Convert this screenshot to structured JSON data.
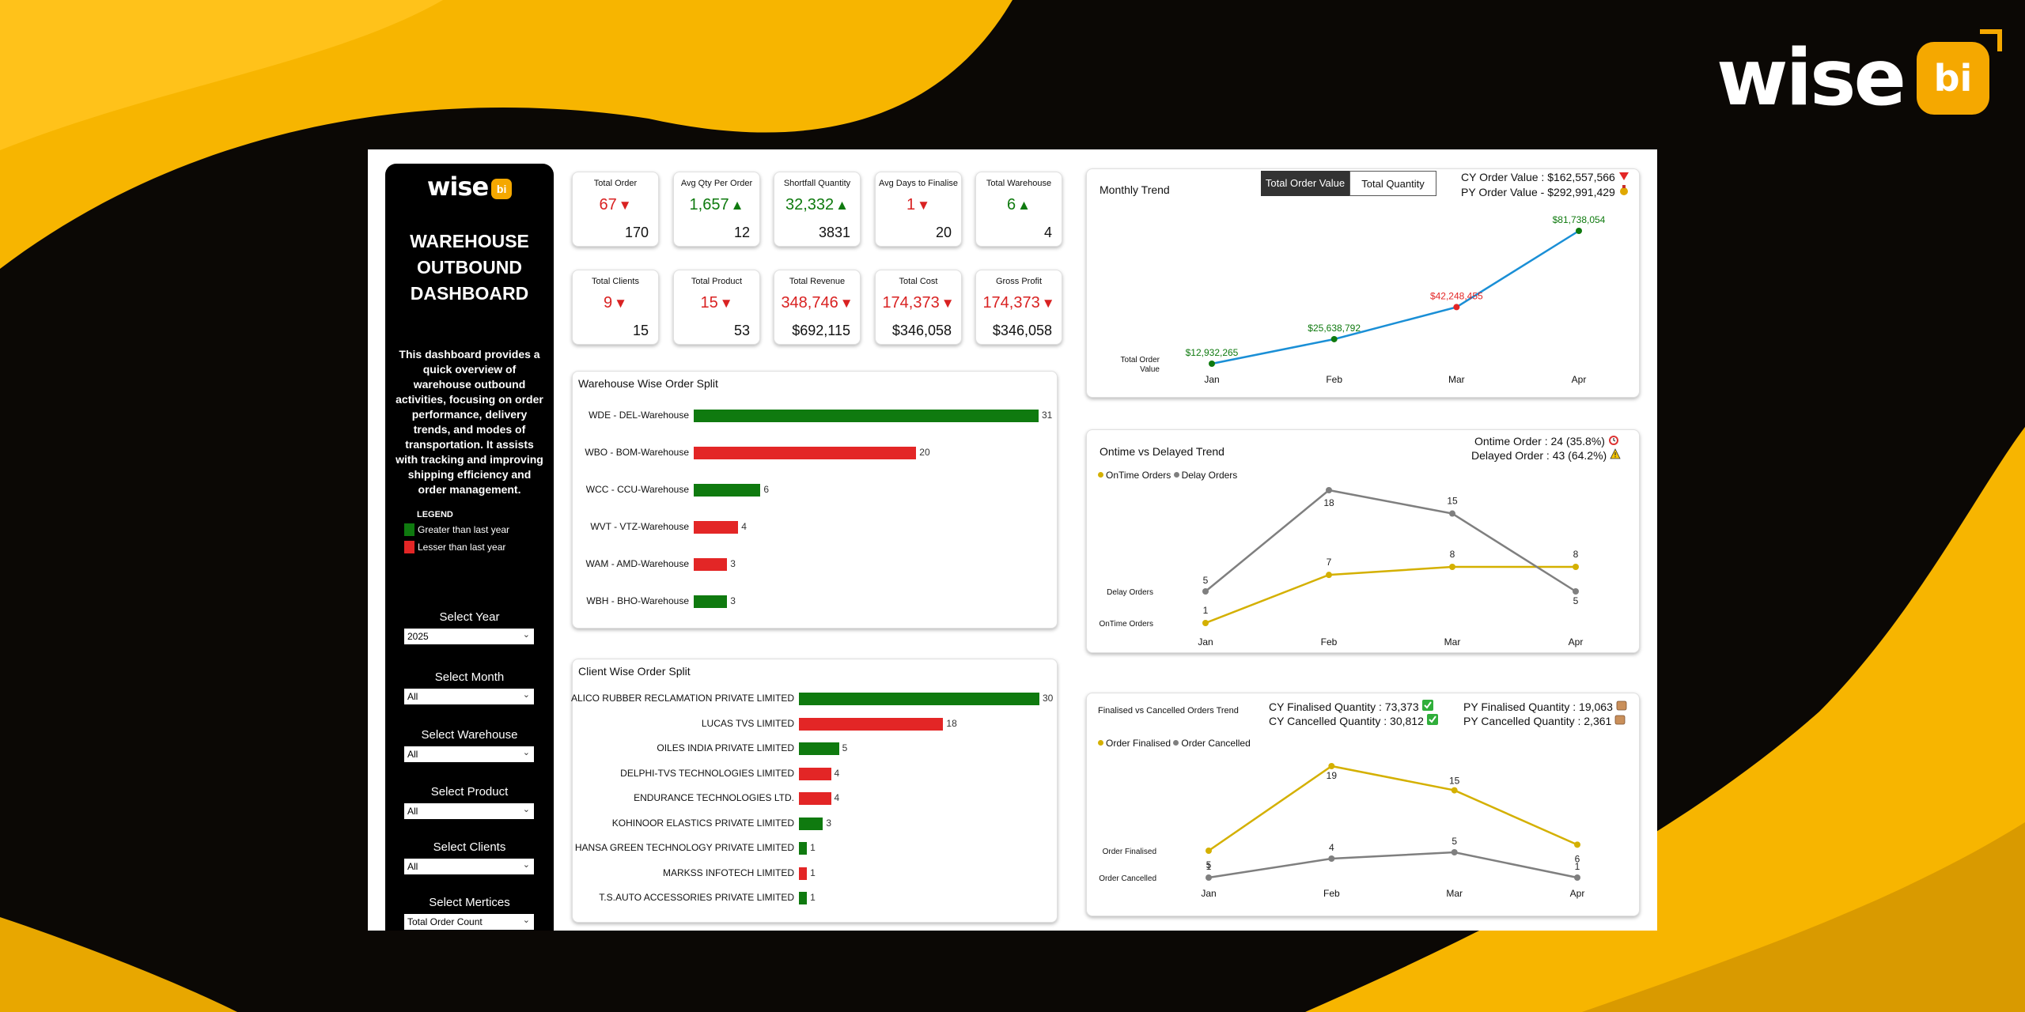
{
  "brand": {
    "word": "wise",
    "badge": "bi"
  },
  "colors": {
    "green": "#0f7a0f",
    "red": "#e32626",
    "blue": "#1a8fd6",
    "gold": "#d4b000",
    "gray": "#7f7f7f",
    "accent": "#f5a800"
  },
  "sidebar": {
    "logo_word": "wise",
    "logo_badge": "bi",
    "title": "WAREHOUSE OUTBOUND DASHBOARD",
    "description": "This dashboard provides a quick overview of warehouse outbound activities, focusing on order performance, delivery trends, and modes of transportation. It assists with tracking and improving shipping efficiency and order management.",
    "legend": {
      "heading": "LEGEND",
      "greater": "Greater than last year",
      "lesser": "Lesser than last year"
    },
    "filters": [
      {
        "label": "Select Year",
        "value": "2025"
      },
      {
        "label": "Select Month",
        "value": "All"
      },
      {
        "label": "Select Warehouse",
        "value": "All"
      },
      {
        "label": "Select Product",
        "value": "All"
      },
      {
        "label": "Select Clients",
        "value": "All"
      },
      {
        "label": "Select Mertices",
        "value": "Total Order Count"
      }
    ]
  },
  "kpis": [
    {
      "title": "Total Order",
      "value": "67",
      "trend": "down",
      "py": "170"
    },
    {
      "title": "Avg Qty Per Order",
      "value": "1,657",
      "trend": "up",
      "py": "12"
    },
    {
      "title": "Shortfall Quantity",
      "value": "32,332",
      "trend": "up",
      "py": "3831"
    },
    {
      "title": "Avg Days to Finalise",
      "value": "1",
      "trend": "down",
      "py": "20"
    },
    {
      "title": "Total Warehouse",
      "value": "6",
      "trend": "up",
      "py": "4"
    },
    {
      "title": "Total Clients",
      "value": "9",
      "trend": "down",
      "py": "15"
    },
    {
      "title": "Total Product",
      "value": "15",
      "trend": "down",
      "py": "53"
    },
    {
      "title": "Total Revenue",
      "value": "348,746",
      "trend": "down",
      "py": "$692,115"
    },
    {
      "title": "Total Cost",
      "value": "174,373",
      "trend": "down",
      "py": "$346,058"
    },
    {
      "title": "Gross Profit",
      "value": "174,373",
      "trend": "down",
      "py": "$346,058"
    }
  ],
  "warehouse_split": {
    "title": "Warehouse Wise Order Split",
    "chart_data": {
      "type": "bar",
      "orientation": "horizontal",
      "categories": [
        "WDE - DEL-Warehouse",
        "WBO - BOM-Warehouse",
        "WCC - CCU-Warehouse",
        "WVT - VTZ-Warehouse",
        "WAM - AMD-Warehouse",
        "WBH - BHO-Warehouse"
      ],
      "values": [
        31,
        20,
        6,
        4,
        3,
        3
      ],
      "colors": [
        "green",
        "red",
        "green",
        "red",
        "red",
        "green"
      ]
    }
  },
  "client_split": {
    "title": "Client Wise Order Split",
    "chart_data": {
      "type": "bar",
      "orientation": "horizontal",
      "categories": [
        "ALICO RUBBER RECLAMATION PRIVATE LIMITED",
        "LUCAS TVS LIMITED",
        "OILES INDIA PRIVATE LIMITED",
        "DELPHI-TVS TECHNOLOGIES LIMITED",
        "ENDURANCE TECHNOLOGIES LTD.",
        "KOHINOOR ELASTICS PRIVATE LIMITED",
        "HANSA GREEN TECHNOLOGY PRIVATE LIMITED",
        "MARKSS INFOTECH LIMITED",
        "T.S.AUTO ACCESSORIES PRIVATE LIMITED"
      ],
      "values": [
        30,
        18,
        5,
        4,
        4,
        3,
        1,
        1,
        1
      ],
      "colors": [
        "green",
        "red",
        "green",
        "red",
        "red",
        "green",
        "green",
        "red",
        "green"
      ]
    }
  },
  "monthly_trend": {
    "title": "Monthly Trend",
    "toggle_active": "Total Order Value",
    "toggle_inactive": "Total Quantity",
    "cy_label": "CY Order Value : $162,557,566",
    "py_label": "PY Order Value - $292,991,429",
    "chart_data": {
      "type": "line",
      "x": [
        "Jan",
        "Feb",
        "Mar",
        "Apr"
      ],
      "series": [
        {
          "name": "Total Order Value",
          "values": [
            12932265,
            25638792,
            42248455,
            81738054
          ]
        }
      ],
      "data_labels": [
        "$12,932,265",
        "$25,638,792",
        "$42,248,455",
        "$81,738,054"
      ],
      "point_colors": [
        "green",
        "green",
        "red",
        "green"
      ],
      "ylabel": "Total Order Value"
    }
  },
  "ontime_trend": {
    "title": "Ontime vs Delayed Trend",
    "ontime_label": "Ontime Order : 24 (35.8%)",
    "delayed_label": "Delayed Order : 43 (64.2%)",
    "chart_data": {
      "type": "line",
      "x": [
        "Jan",
        "Feb",
        "Mar",
        "Apr"
      ],
      "series": [
        {
          "name": "OnTime Orders",
          "values": [
            1,
            7,
            8,
            8
          ]
        },
        {
          "name": "Delay Orders",
          "values": [
            5,
            18,
            15,
            5
          ]
        }
      ],
      "legend": "top-left"
    }
  },
  "finalised_trend": {
    "title": "Finalised vs Cancelled Orders Trend",
    "cy_finalised": "CY Finalised Quantity : 73,373",
    "cy_cancelled": "CY Cancelled Quantity : 30,812",
    "py_finalised": "PY Finalised Quantity : 19,063",
    "py_cancelled": "PY Cancelled Quantity : 2,361",
    "chart_data": {
      "type": "line",
      "x": [
        "Jan",
        "Feb",
        "Mar",
        "Apr"
      ],
      "series": [
        {
          "name": "Order Finalised",
          "values": [
            5,
            19,
            15,
            6
          ]
        },
        {
          "name": "Order Cancelled",
          "values": [
            1,
            4,
            5,
            1
          ]
        }
      ],
      "legend": "top-left"
    }
  }
}
